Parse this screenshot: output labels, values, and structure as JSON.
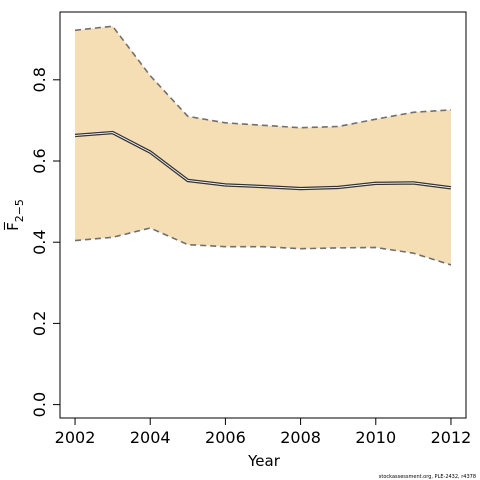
{
  "chart_data": {
    "type": "line",
    "xlabel": "Year",
    "ylabel": "F̅",
    "ylabel_subscript": "2−5",
    "xlim": [
      2001.6,
      2012.4
    ],
    "ylim": [
      -0.033,
      0.967
    ],
    "x_ticks": [
      2002,
      2004,
      2006,
      2008,
      2010,
      2012
    ],
    "x_tick_labels": [
      "2002",
      "2004",
      "2006",
      "2008",
      "2010",
      "2012"
    ],
    "y_ticks": [
      0.0,
      0.2,
      0.4,
      0.6,
      0.8
    ],
    "y_tick_labels": [
      "0.0",
      "0.2",
      "0.4",
      "0.6",
      "0.8"
    ],
    "grid": false,
    "band_color": "#F5DEB3",
    "line_color": "#333333",
    "bound_color": "#707070",
    "x": [
      2002,
      2003,
      2004,
      2005,
      2006,
      2007,
      2008,
      2009,
      2010,
      2011,
      2012
    ],
    "series": [
      {
        "role": "estimate",
        "values": [
          0.663,
          0.67,
          0.622,
          0.552,
          0.541,
          0.537,
          0.532,
          0.535,
          0.545,
          0.546,
          0.534
        ]
      },
      {
        "role": "lower",
        "values": [
          0.404,
          0.412,
          0.435,
          0.394,
          0.389,
          0.389,
          0.384,
          0.386,
          0.387,
          0.373,
          0.344
        ]
      },
      {
        "role": "upper",
        "values": [
          0.922,
          0.932,
          0.81,
          0.71,
          0.694,
          0.688,
          0.682,
          0.685,
          0.703,
          0.72,
          0.726
        ]
      }
    ]
  },
  "footer": {
    "credit": "stockassessment.org, PLE-2432, r4378"
  }
}
